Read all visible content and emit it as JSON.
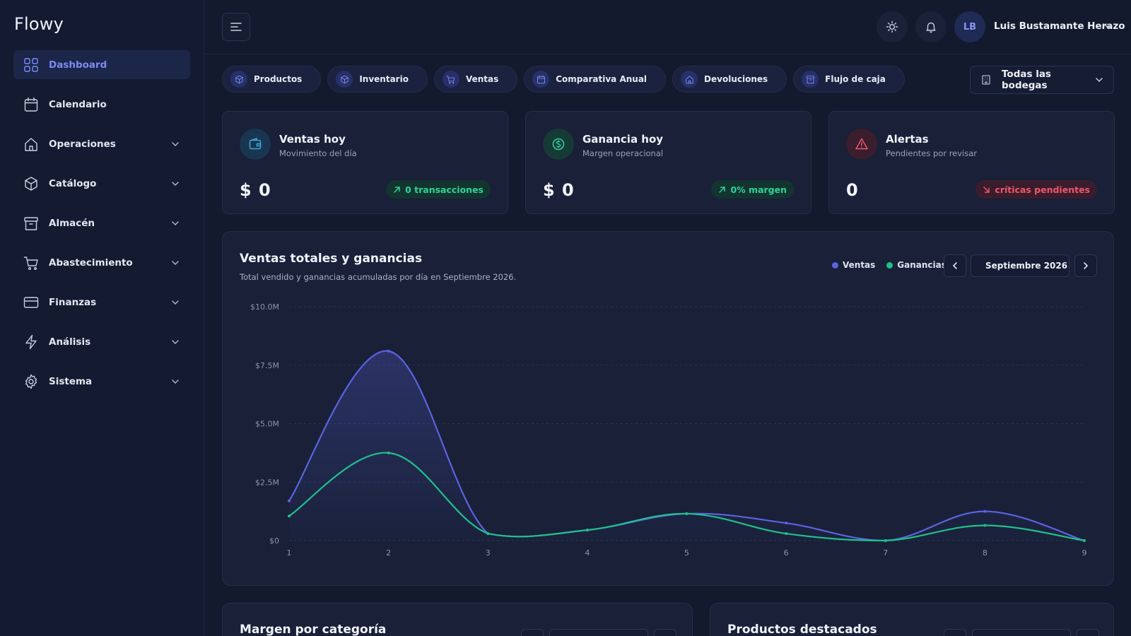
{
  "brand": "Flowy",
  "sidebar": {
    "items": [
      {
        "label": "Dashboard",
        "icon": "grid-icon",
        "active": true,
        "expandable": false
      },
      {
        "label": "Calendario",
        "icon": "calendar-icon",
        "active": false,
        "expandable": false
      },
      {
        "label": "Operaciones",
        "icon": "home-icon",
        "active": false,
        "expandable": true
      },
      {
        "label": "Catálogo",
        "icon": "box-icon",
        "active": false,
        "expandable": true
      },
      {
        "label": "Almacén",
        "icon": "archive-icon",
        "active": false,
        "expandable": true
      },
      {
        "label": "Abastecimiento",
        "icon": "cart-icon",
        "active": false,
        "expandable": true
      },
      {
        "label": "Finanzas",
        "icon": "card-icon",
        "active": false,
        "expandable": true
      },
      {
        "label": "Análisis",
        "icon": "bolt-icon",
        "active": false,
        "expandable": true
      },
      {
        "label": "Sistema",
        "icon": "gear-icon",
        "active": false,
        "expandable": true
      }
    ]
  },
  "header": {
    "user": {
      "initials": "LB",
      "name": "Luis Bustamante Herazo"
    },
    "theme_icon": "sun-icon",
    "notifications_icon": "bell-icon"
  },
  "tabs": [
    "Productos",
    "Inventario",
    "Ventas",
    "Comparativa Anual",
    "Devoluciones",
    "Flujo de caja"
  ],
  "warehouse_select": "Todas las bodegas",
  "kpis": [
    {
      "title": "Ventas hoy",
      "subtitle": "Movimiento del día",
      "value": "$ 0",
      "badge": "0 transacciones",
      "trend": "up",
      "accent": "#3aa6d8"
    },
    {
      "title": "Ganancia hoy",
      "subtitle": "Margen operacional",
      "value": "$ 0",
      "badge": "0% margen",
      "trend": "up",
      "accent": "#2fd49a"
    },
    {
      "title": "Alertas",
      "subtitle": "Pendientes por revisar",
      "value": "0",
      "badge": "críticas pendientes",
      "trend": "down",
      "accent": "#f0566e"
    }
  ],
  "main_chart": {
    "title": "Ventas totales y ganancias",
    "subtitle": "Total vendido y ganancias acumuladas por día en Septiembre 2026.",
    "month_label": "Septiembre 2026"
  },
  "chart_data": {
    "type": "area",
    "x": [
      1,
      2,
      3,
      4,
      5,
      6,
      7,
      8,
      9
    ],
    "series": [
      {
        "name": "Ventas",
        "color": "#5b63e0",
        "values": [
          1.7,
          8.1,
          0.3,
          0.45,
          1.15,
          0.75,
          0.0,
          1.25,
          0.0
        ]
      },
      {
        "name": "Ganancias",
        "color": "#20c08a",
        "values": [
          1.05,
          3.75,
          0.3,
          0.45,
          1.15,
          0.3,
          0.0,
          0.65,
          0.0
        ]
      }
    ],
    "y_ticks": [
      "$0",
      "$2.5M",
      "$5.0M",
      "$7.5M",
      "$10.0M"
    ],
    "y_unit": "M",
    "ylim": [
      0,
      10
    ],
    "grid": true,
    "legend": "top-right"
  },
  "bottom_cards": [
    {
      "title": "Margen por categoría"
    },
    {
      "title": "Productos destacados"
    }
  ]
}
